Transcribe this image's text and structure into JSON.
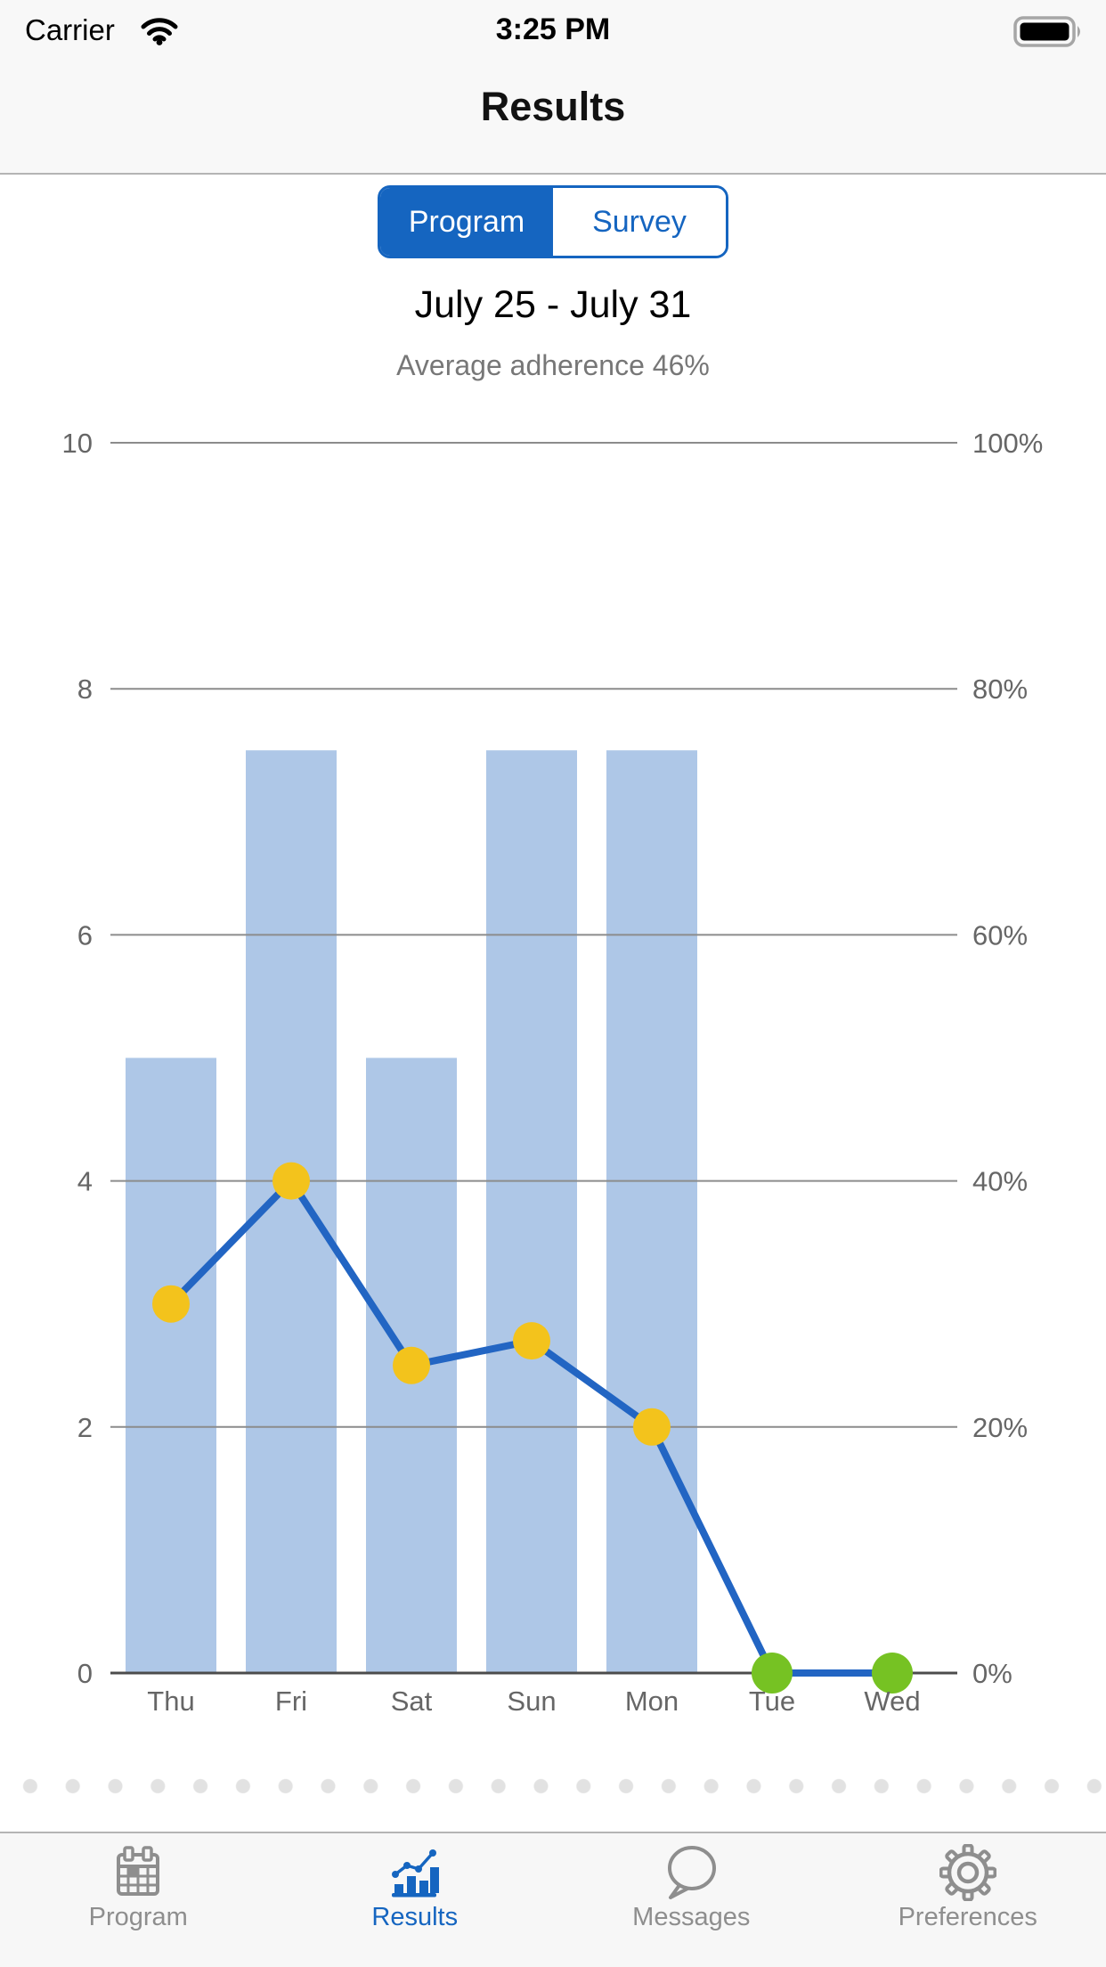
{
  "status_bar": {
    "carrier": "Carrier",
    "time": "3:25 PM",
    "battery": "full",
    "icons": [
      "wifi-icon",
      "battery-icon"
    ]
  },
  "header": {
    "title": "Results"
  },
  "segmented_control": {
    "options": [
      {
        "label": "Program",
        "selected": true
      },
      {
        "label": "Survey",
        "selected": false
      }
    ]
  },
  "summary": {
    "period": "July 25 - July 31",
    "subtitle": "Average adherence 46%"
  },
  "chart_data": {
    "type": "bar",
    "title": "",
    "categories": [
      "Thu",
      "Fri",
      "Sat",
      "Sun",
      "Mon",
      "Tue",
      "Wed"
    ],
    "series": [
      {
        "name": "bars",
        "type": "bar",
        "values": [
          5,
          7.5,
          5,
          7.5,
          7.5,
          0,
          0
        ],
        "color": "#aec7e7"
      },
      {
        "name": "line",
        "type": "line",
        "values": [
          3,
          4,
          2.5,
          2.7,
          2,
          0,
          0
        ],
        "color": "#2265c3",
        "point_colors": [
          "#f3c31c",
          "#f3c31c",
          "#f3c31c",
          "#f3c31c",
          "#f3c31c",
          "#76c223",
          "#76c223"
        ]
      }
    ],
    "left_axis": {
      "min": 0,
      "max": 10,
      "tick_values": [
        0,
        2,
        4,
        6,
        8,
        10
      ],
      "tick_labels": [
        "0",
        "2",
        "4",
        "6",
        "8",
        "10"
      ]
    },
    "right_axis": {
      "tick_labels": [
        "0%",
        "20%",
        "40%",
        "60%",
        "80%",
        "100%"
      ]
    },
    "grid": true,
    "legend": "none"
  },
  "tab_bar": {
    "items": [
      {
        "label": "Program",
        "icon": "calendar-icon",
        "active": false
      },
      {
        "label": "Results",
        "icon": "bar-chart-icon",
        "active": true
      },
      {
        "label": "Messages",
        "icon": "speech-bubble-icon",
        "active": false
      },
      {
        "label": "Preferences",
        "icon": "gear-icon",
        "active": false
      }
    ]
  },
  "colors": {
    "accent": "#1565c0",
    "bar_fill": "#aec7e7",
    "line": "#2265c3",
    "point_yellow": "#f3c31c",
    "point_green": "#76c223",
    "grid_line": "#8c8c8c",
    "axis_line": "#4c4c4c",
    "axis_text": "#666666",
    "tab_inactive": "#8e8e8e",
    "header_bg": "#f8f8f8",
    "separator_dot": "#e2e2e2"
  }
}
